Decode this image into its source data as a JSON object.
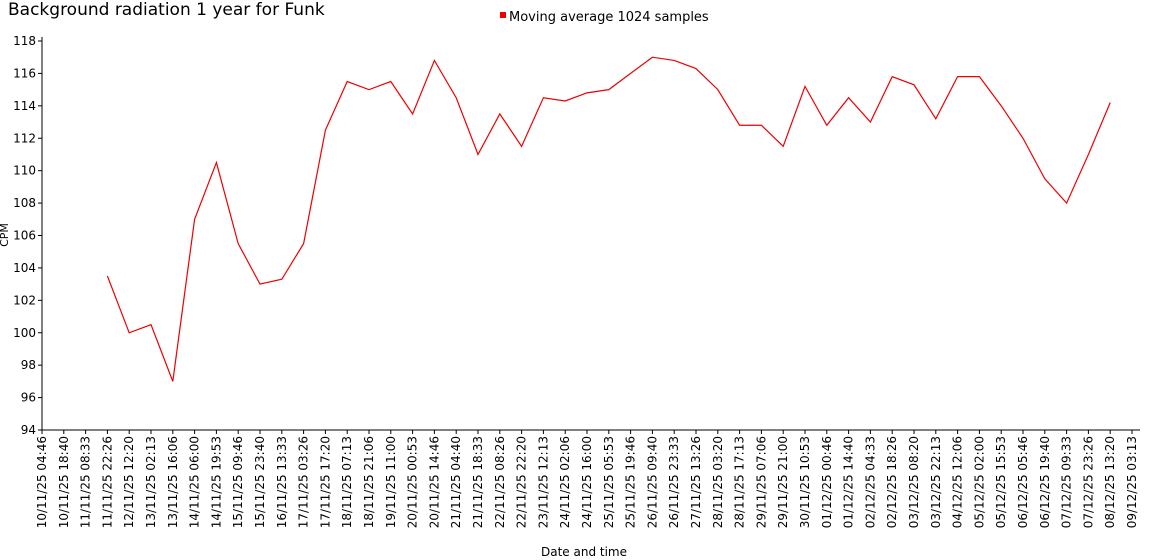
{
  "chart_data": {
    "type": "line",
    "title": "Background radiation 1 year for Funk",
    "xlabel": "Date and time",
    "ylabel": "CPM",
    "categories": [
      "10/11/25 04:46",
      "10/11/25 18:40",
      "11/11/25 08:33",
      "11/11/25 22:26",
      "12/11/25 12:20",
      "13/11/25 02:13",
      "13/11/25 16:06",
      "14/11/25 06:00",
      "14/11/25 19:53",
      "15/11/25 09:46",
      "15/11/25 23:40",
      "16/11/25 13:33",
      "17/11/25 03:26",
      "17/11/25 17:20",
      "18/11/25 07:13",
      "18/11/25 21:06",
      "19/11/25 11:00",
      "20/11/25 00:53",
      "20/11/25 14:46",
      "21/11/25 04:40",
      "21/11/25 18:33",
      "22/11/25 08:26",
      "22/11/25 22:20",
      "23/11/25 12:13",
      "24/11/25 02:06",
      "24/11/25 16:00",
      "25/11/25 05:53",
      "25/11/25 19:46",
      "26/11/25 09:40",
      "26/11/25 23:33",
      "27/11/25 13:26",
      "28/11/25 03:20",
      "28/11/25 17:13",
      "29/11/25 07:06",
      "29/11/25 21:00",
      "30/11/25 10:53",
      "01/12/25 00:46",
      "01/12/25 14:40",
      "02/12/25 04:33",
      "02/12/25 18:26",
      "03/12/25 08:20",
      "03/12/25 22:13",
      "04/12/25 12:06",
      "05/12/25 02:00",
      "05/12/25 15:53",
      "06/12/25 05:46",
      "06/12/25 19:40",
      "07/12/25 09:33",
      "07/12/25 23:26",
      "08/12/25 13:20",
      "09/12/25 03:13"
    ],
    "series": [
      {
        "name": "Moving average 1024 samples",
        "color": "#ee0000",
        "values": [
          null,
          null,
          null,
          103.5,
          100,
          100.5,
          97,
          107,
          110.5,
          105.5,
          103,
          103.3,
          105.5,
          112.5,
          115.5,
          115,
          115.5,
          113.5,
          116.8,
          114.5,
          111,
          113.5,
          111.5,
          114.5,
          114.3,
          114.8,
          115,
          116,
          117,
          116.8,
          116.3,
          115,
          112.8,
          112.8,
          111.5,
          115.2,
          112.8,
          114.5,
          113,
          115.8,
          115.3,
          113.2,
          115.8,
          115.8,
          114,
          112,
          109.5,
          108,
          111,
          114.2,
          null
        ]
      }
    ],
    "ylim": [
      94,
      118
    ],
    "yticks": [
      94,
      96,
      98,
      100,
      102,
      104,
      106,
      108,
      110,
      112,
      114,
      116,
      118
    ],
    "grid": false
  }
}
